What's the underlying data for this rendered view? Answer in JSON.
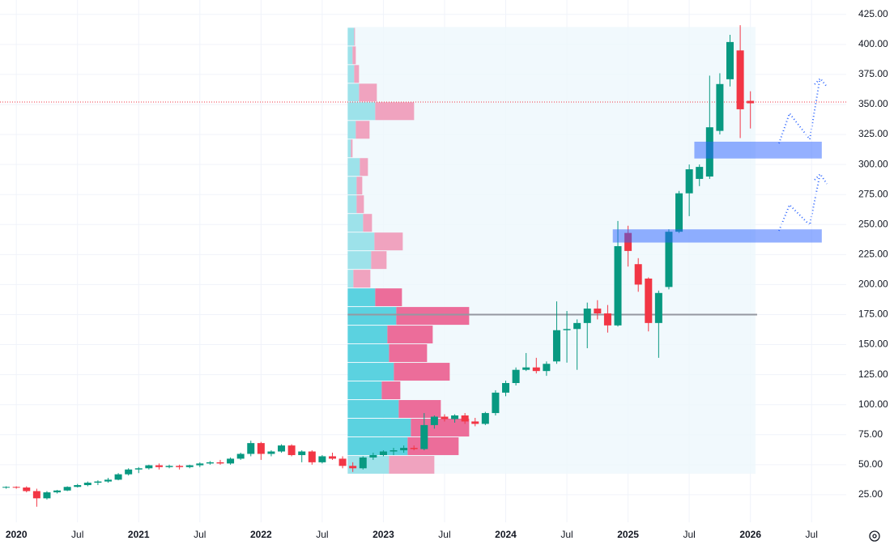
{
  "chart_data": {
    "type": "candlestick",
    "x": [
      "2019-12",
      "2020-01",
      "2020-02",
      "2020-03",
      "2020-04",
      "2020-05",
      "2020-06",
      "2020-07",
      "2020-08",
      "2020-09",
      "2020-10",
      "2020-11",
      "2020-12",
      "2021-01",
      "2021-02",
      "2021-03",
      "2021-04",
      "2021-05",
      "2021-06",
      "2021-07",
      "2021-08",
      "2021-09",
      "2021-10",
      "2021-11",
      "2021-12",
      "2022-01",
      "2022-02",
      "2022-03",
      "2022-04",
      "2022-05",
      "2022-06",
      "2022-07",
      "2022-08",
      "2022-09",
      "2022-10",
      "2022-11",
      "2022-12",
      "2023-01",
      "2023-02",
      "2023-03",
      "2023-04",
      "2023-05",
      "2023-06",
      "2023-07",
      "2023-08",
      "2023-09",
      "2023-10",
      "2023-11",
      "2023-12",
      "2024-01",
      "2024-02",
      "2024-03",
      "2024-04",
      "2024-05",
      "2024-06",
      "2024-07",
      "2024-08",
      "2024-09",
      "2024-10",
      "2024-11",
      "2024-12",
      "2025-01",
      "2025-02",
      "2025-03",
      "2025-04",
      "2025-05",
      "2025-06",
      "2025-07",
      "2025-08",
      "2025-09",
      "2025-10",
      "2025-11",
      "2025-12",
      "2026-01"
    ],
    "open": [
      31,
      31.5,
      31,
      28,
      22,
      27,
      28.5,
      31.5,
      33,
      35,
      36,
      37.5,
      42,
      46,
      47,
      49.5,
      48,
      49,
      48,
      49.5,
      51,
      52,
      51,
      55,
      59,
      68,
      59,
      61,
      66,
      58,
      61,
      52,
      57,
      55,
      49,
      47,
      56,
      58,
      61,
      62,
      64,
      63,
      83,
      90,
      88,
      91,
      86,
      84,
      93,
      110,
      118,
      129,
      131,
      128,
      136,
      162,
      163,
      168,
      180,
      176,
      166,
      243,
      217,
      205,
      168,
      198,
      244,
      276,
      288,
      290,
      328,
      371,
      395,
      353
    ],
    "high": [
      32,
      32,
      32,
      30,
      28,
      29,
      32,
      34,
      36,
      37,
      39,
      43,
      47,
      48,
      50,
      51,
      50,
      50,
      50,
      52,
      53,
      54,
      56,
      60,
      70,
      69,
      62,
      67,
      67,
      62,
      62,
      58,
      60,
      57,
      52,
      57,
      60,
      62,
      64,
      66,
      66,
      93,
      91,
      92,
      92,
      93,
      89,
      94,
      112,
      120,
      131,
      143,
      139,
      136,
      186,
      178,
      171,
      185,
      187,
      183,
      253,
      249,
      222,
      206,
      195,
      246,
      278,
      300,
      300,
      374,
      376,
      408,
      416,
      361
    ],
    "low": [
      30,
      30,
      27,
      15,
      21,
      26,
      28,
      31,
      32,
      33,
      35,
      37,
      41,
      43,
      46,
      46,
      47,
      46,
      47,
      48,
      50,
      50,
      50,
      54,
      57,
      54,
      57,
      60,
      57,
      52,
      50,
      51,
      54,
      47,
      44,
      46,
      54,
      57,
      58,
      60,
      62,
      62,
      80,
      86,
      85,
      84,
      82,
      83,
      91,
      107,
      116,
      128,
      126,
      124,
      134,
      135,
      129,
      147,
      171,
      160,
      165,
      215,
      194,
      161,
      139,
      196,
      243,
      257,
      282,
      288,
      325,
      365,
      322,
      330
    ],
    "close": [
      31.5,
      31,
      28,
      22,
      27,
      28.5,
      31.5,
      33,
      35,
      36,
      37.5,
      42,
      46,
      47,
      49.5,
      48,
      49,
      48,
      49.5,
      51,
      52,
      51,
      55,
      59,
      68,
      59,
      61,
      66,
      58,
      61,
      52,
      57,
      55,
      49,
      47,
      56,
      58,
      61,
      62,
      64,
      63,
      83,
      90,
      88,
      91,
      86,
      84,
      93,
      110,
      118,
      129,
      131,
      128,
      134,
      162,
      163,
      168,
      180,
      176,
      166,
      232,
      228,
      200,
      168,
      193,
      244,
      276,
      296,
      298,
      331,
      367,
      402,
      346,
      351
    ],
    "up_color": "#089981",
    "down_color": "#f23645",
    "ylim": [
      2,
      437
    ],
    "yticks": [
      {
        "value": 25,
        "label": "25.00"
      },
      {
        "value": 50,
        "label": "50.00"
      },
      {
        "value": 75,
        "label": "75.00"
      },
      {
        "value": 100,
        "label": "100.00"
      },
      {
        "value": 125,
        "label": "125.00"
      },
      {
        "value": 150,
        "label": "150.00"
      },
      {
        "value": 175,
        "label": "175.00"
      },
      {
        "value": 200,
        "label": "200.00"
      },
      {
        "value": 225,
        "label": "225.00"
      },
      {
        "value": 250,
        "label": "250.00"
      },
      {
        "value": 275,
        "label": "275.00"
      },
      {
        "value": 300,
        "label": "300.00"
      },
      {
        "value": 325,
        "label": "325.00"
      },
      {
        "value": 350,
        "label": "350.00"
      },
      {
        "value": 375,
        "label": "375.00"
      },
      {
        "value": 400,
        "label": "400.00"
      },
      {
        "value": 425,
        "label": "425.00"
      }
    ],
    "xlim": [
      "2019-11",
      "2026-10"
    ],
    "xticks": [
      {
        "value": "2020-01",
        "label": "2020"
      },
      {
        "value": "2020-07",
        "label": "Jul"
      },
      {
        "value": "2021-01",
        "label": "2021"
      },
      {
        "value": "2021-07",
        "label": "Jul"
      },
      {
        "value": "2022-01",
        "label": "2022"
      },
      {
        "value": "2022-07",
        "label": "Jul"
      },
      {
        "value": "2023-01",
        "label": "2023"
      },
      {
        "value": "2023-07",
        "label": "Jul"
      },
      {
        "value": "2024-01",
        "label": "2024"
      },
      {
        "value": "2024-07",
        "label": "Jul"
      },
      {
        "value": "2025-01",
        "label": "2025"
      },
      {
        "value": "2025-07",
        "label": "Jul"
      },
      {
        "value": "2026-01",
        "label": "2026"
      },
      {
        "value": "2026-07",
        "label": "Jul"
      }
    ],
    "grid": true,
    "volume_profile": {
      "start": "2022-10",
      "end": "2026-01",
      "price_bins": [
        42.5,
        58,
        73.5,
        89,
        104.5,
        120,
        135.5,
        151,
        166.5,
        182,
        197.5,
        213,
        228.5,
        244,
        259.5,
        275,
        290.5,
        306,
        321.5,
        337,
        352.5,
        368,
        383.5,
        399,
        414.5
      ],
      "up": [
        51,
        74,
        78,
        63,
        42,
        57,
        51,
        49,
        60,
        34,
        7,
        29,
        33,
        19,
        11,
        11,
        15,
        4,
        10,
        34,
        14,
        8,
        6,
        8
      ],
      "down": [
        56,
        63,
        72,
        52,
        23,
        69,
        47,
        56,
        90,
        33,
        21,
        19,
        35,
        11,
        9,
        7,
        10,
        2,
        17,
        48,
        22,
        6,
        4,
        1
      ],
      "value_area": [
        58,
        197.5
      ],
      "up_color": "#5bd2e0",
      "down_color": "#ec6d9a",
      "up_color_outside": "#9de2ea",
      "down_color_outside": "#f0a3bf"
    },
    "poc": 175,
    "price_line": 352,
    "zones": [
      {
        "low": 305,
        "high": 319,
        "start": "2025-08",
        "end": "2026-08"
      },
      {
        "low": 235,
        "high": 246,
        "start": "2024-12",
        "end": "2026-08"
      }
    ]
  }
}
